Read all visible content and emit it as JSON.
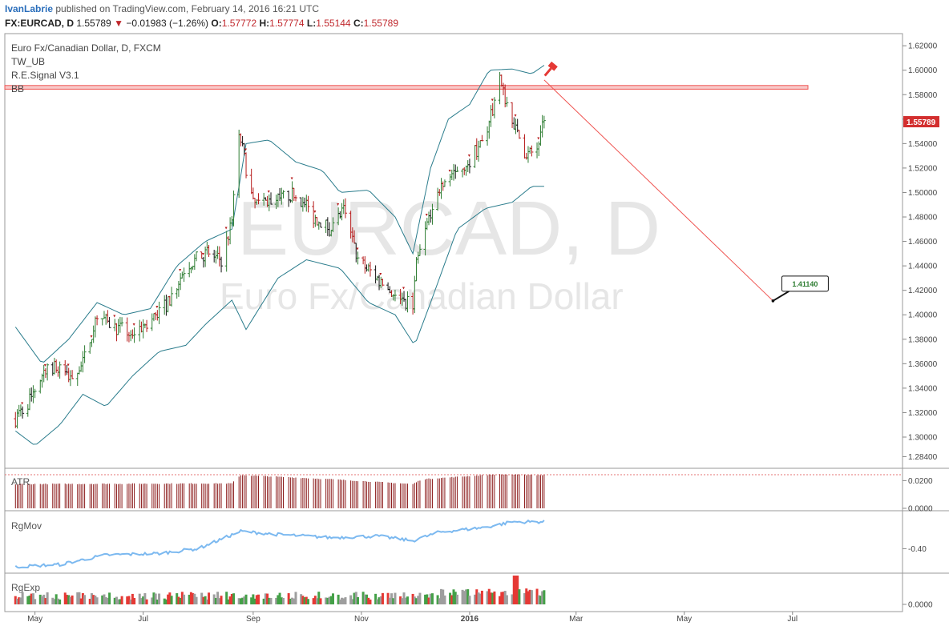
{
  "header": {
    "user": "IvanLabrie",
    "published": "published on TradingView.com, February 14, 2016 16:21 UTC",
    "symbol": "FX:EURCAD, D",
    "last": "1.55789",
    "change": "−0.01983 (−1.26%)",
    "o_label": "O:",
    "o": "1.57772",
    "h_label": "H:",
    "h": "1.57774",
    "l_label": "L:",
    "l": "1.55144",
    "c_label": "C:",
    "c": "1.55789"
  },
  "legend": {
    "instrument": "Euro Fx/Canadian Dollar, D, FXCM",
    "ind1": "TW_UB",
    "ind2": "R.E.Signal V3.1",
    "ind3": "BB"
  },
  "watermark": {
    "big": "EURCAD, D",
    "small": "Euro Fx/Canadian Dollar"
  },
  "colors": {
    "up": "#2e7d32",
    "down": "#b71c1c",
    "band": "#2a7c8c",
    "resistance": "#ef5350",
    "rgmov": "#7cb9f0",
    "price_tag": "#d32f2f"
  },
  "chart_data": [
    {
      "type": "ohlc",
      "title": "Euro Fx/Canadian Dollar, D, FXCM",
      "ylim": [
        1.28,
        1.63
      ],
      "y_ticks": [
        "1.62000",
        "1.60000",
        "1.58000",
        "1.56000",
        "1.54000",
        "1.52000",
        "1.50000",
        "1.48000",
        "1.46000",
        "1.44000",
        "1.42000",
        "1.40000",
        "1.38000",
        "1.36000",
        "1.34000",
        "1.32000",
        "1.30000",
        "1.28400"
      ],
      "x_ticks": [
        "May",
        "Jul",
        "Sep",
        "Nov",
        "2016",
        "Mar",
        "May",
        "Jul"
      ],
      "last_price_label": "1.55789",
      "resistance_zone": [
        1.5845,
        1.5875
      ],
      "target_label": "1.41140",
      "projection": {
        "from": [
          "2016-02-12",
          1.592
        ],
        "to": [
          "2016-06-20",
          1.4114
        ]
      },
      "close_anchors": [
        [
          "2015-04-20",
          1.315
        ],
        [
          "2015-04-28",
          1.33
        ],
        [
          "2015-05-08",
          1.36
        ],
        [
          "2015-05-20",
          1.35
        ],
        [
          "2015-05-28",
          1.36
        ],
        [
          "2015-06-05",
          1.4
        ],
        [
          "2015-06-15",
          1.39
        ],
        [
          "2015-06-25",
          1.385
        ],
        [
          "2015-07-05",
          1.395
        ],
        [
          "2015-07-15",
          1.41
        ],
        [
          "2015-07-25",
          1.44
        ],
        [
          "2015-08-05",
          1.45
        ],
        [
          "2015-08-14",
          1.445
        ],
        [
          "2015-08-20",
          1.475
        ],
        [
          "2015-08-24",
          1.55
        ],
        [
          "2015-09-01",
          1.49
        ],
        [
          "2015-09-15",
          1.495
        ],
        [
          "2015-09-25",
          1.5
        ],
        [
          "2015-10-05",
          1.48
        ],
        [
          "2015-10-15",
          1.47
        ],
        [
          "2015-10-22",
          1.485
        ],
        [
          "2015-10-30",
          1.445
        ],
        [
          "2015-11-10",
          1.43
        ],
        [
          "2015-11-20",
          1.415
        ],
        [
          "2015-11-30",
          1.408
        ],
        [
          "2015-12-02",
          1.44
        ],
        [
          "2015-12-10",
          1.485
        ],
        [
          "2015-12-17",
          1.51
        ],
        [
          "2015-12-31",
          1.525
        ],
        [
          "2016-01-10",
          1.545
        ],
        [
          "2016-01-18",
          1.59
        ],
        [
          "2016-01-25",
          1.56
        ],
        [
          "2016-02-02",
          1.53
        ],
        [
          "2016-02-08",
          1.535
        ],
        [
          "2016-02-12",
          1.558
        ]
      ],
      "bollinger": {
        "upper": [
          [
            "2015-04-20",
            1.39
          ],
          [
            "2015-05-05",
            1.36
          ],
          [
            "2015-05-20",
            1.38
          ],
          [
            "2015-06-05",
            1.41
          ],
          [
            "2015-06-20",
            1.4
          ],
          [
            "2015-07-05",
            1.405
          ],
          [
            "2015-07-20",
            1.44
          ],
          [
            "2015-08-05",
            1.46
          ],
          [
            "2015-08-20",
            1.47
          ],
          [
            "2015-08-28",
            1.54
          ],
          [
            "2015-09-10",
            1.543
          ],
          [
            "2015-09-25",
            1.525
          ],
          [
            "2015-10-10",
            1.518
          ],
          [
            "2015-10-20",
            1.5
          ],
          [
            "2015-11-05",
            1.502
          ],
          [
            "2015-11-20",
            1.48
          ],
          [
            "2015-11-30",
            1.45
          ],
          [
            "2015-12-10",
            1.52
          ],
          [
            "2015-12-20",
            1.56
          ],
          [
            "2016-01-01",
            1.572
          ],
          [
            "2016-01-12",
            1.6
          ],
          [
            "2016-01-25",
            1.601
          ],
          [
            "2016-02-05",
            1.597
          ],
          [
            "2016-02-12",
            1.604
          ]
        ],
        "lower": [
          [
            "2015-04-20",
            1.305
          ],
          [
            "2015-05-01",
            1.293
          ],
          [
            "2015-05-15",
            1.31
          ],
          [
            "2015-05-28",
            1.335
          ],
          [
            "2015-06-10",
            1.325
          ],
          [
            "2015-06-25",
            1.35
          ],
          [
            "2015-07-10",
            1.37
          ],
          [
            "2015-07-25",
            1.375
          ],
          [
            "2015-08-05",
            1.392
          ],
          [
            "2015-08-20",
            1.412
          ],
          [
            "2015-08-28",
            1.388
          ],
          [
            "2015-09-15",
            1.43
          ],
          [
            "2015-10-01",
            1.445
          ],
          [
            "2015-10-20",
            1.438
          ],
          [
            "2015-11-05",
            1.41
          ],
          [
            "2015-11-20",
            1.4
          ],
          [
            "2015-12-01",
            1.375
          ],
          [
            "2015-12-10",
            1.41
          ],
          [
            "2015-12-25",
            1.47
          ],
          [
            "2016-01-10",
            1.487
          ],
          [
            "2016-01-25",
            1.492
          ],
          [
            "2016-02-05",
            1.505
          ],
          [
            "2016-02-12",
            1.505
          ]
        ]
      }
    },
    {
      "type": "bar",
      "title": "ATR",
      "y_ticks": [
        "0.0200",
        "0.0000"
      ],
      "ylim": [
        0,
        0.026
      ],
      "anchors": [
        [
          "2015-04-20",
          0.0175
        ],
        [
          "2015-08-20",
          0.018
        ],
        [
          "2015-08-25",
          0.024
        ],
        [
          "2015-10-15",
          0.021
        ],
        [
          "2015-11-30",
          0.0175
        ],
        [
          "2015-12-05",
          0.021
        ],
        [
          "2016-01-15",
          0.0245
        ],
        [
          "2016-02-12",
          0.024
        ]
      ]
    },
    {
      "type": "line",
      "title": "RgMov",
      "y_ticks": [
        "-0.40"
      ],
      "ylim": [
        -0.7,
        0.05
      ],
      "anchors": [
        [
          "2015-04-20",
          -0.63
        ],
        [
          "2015-05-15",
          -0.6
        ],
        [
          "2015-06-10",
          -0.48
        ],
        [
          "2015-07-10",
          -0.46
        ],
        [
          "2015-08-01",
          -0.4
        ],
        [
          "2015-08-25",
          -0.18
        ],
        [
          "2015-09-15",
          -0.22
        ],
        [
          "2015-10-15",
          -0.26
        ],
        [
          "2015-11-10",
          -0.24
        ],
        [
          "2015-11-30",
          -0.3
        ],
        [
          "2015-12-15",
          -0.19
        ],
        [
          "2016-01-10",
          -0.13
        ],
        [
          "2016-01-25",
          -0.06
        ],
        [
          "2016-02-12",
          -0.06
        ]
      ]
    },
    {
      "type": "bar",
      "title": "RgExp",
      "y_ticks": [
        "0.0000"
      ],
      "ylim": [
        0,
        1
      ],
      "series": [
        {
          "name": "RgExp"
        }
      ]
    }
  ]
}
